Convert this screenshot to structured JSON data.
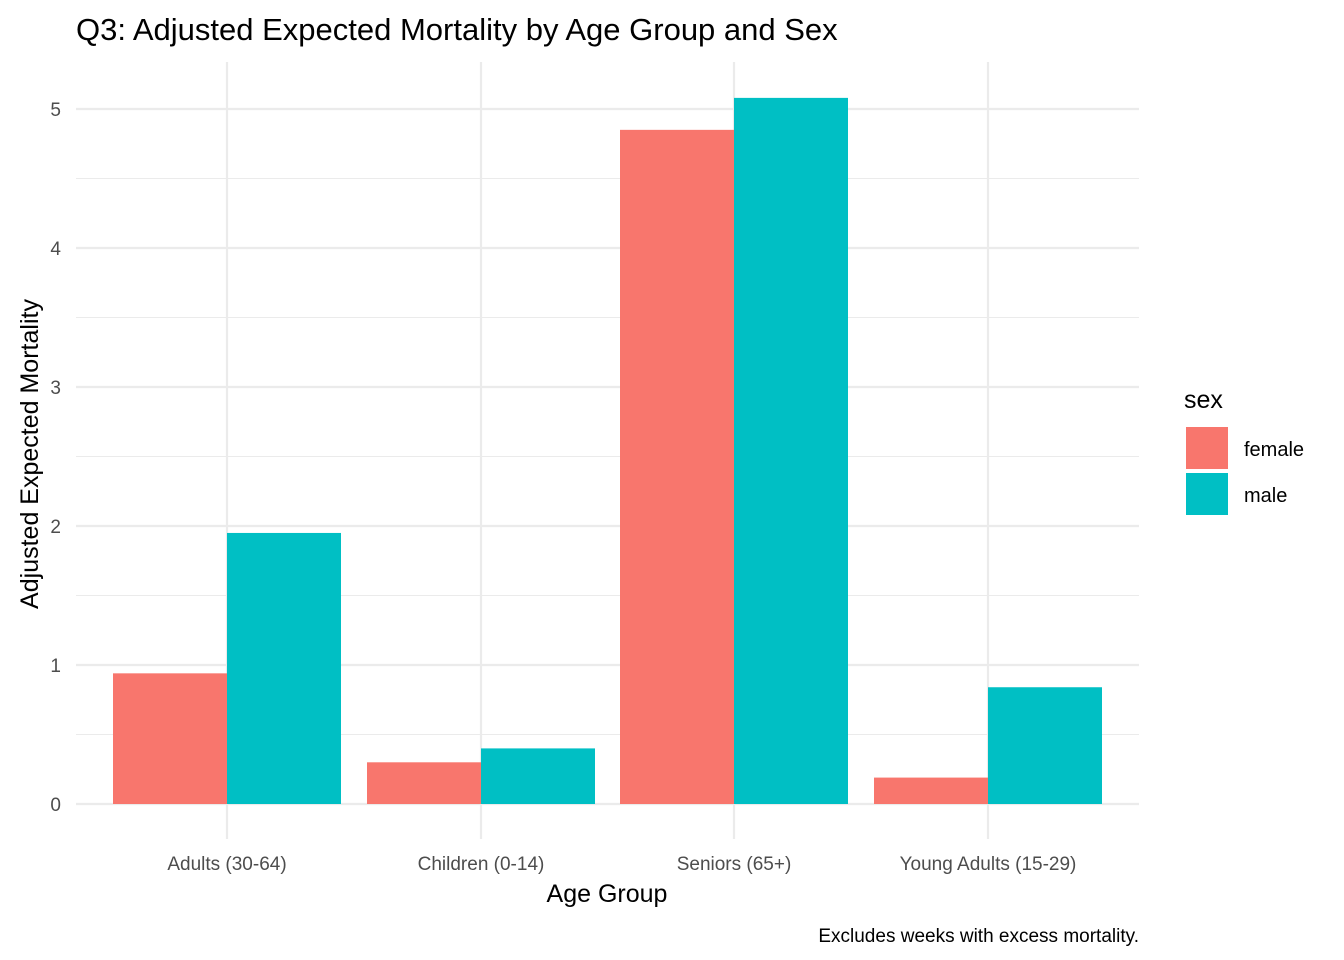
{
  "chart_data": {
    "type": "bar",
    "title": "Q3: Adjusted Expected Mortality by Age Group and Sex",
    "xlabel": "Age Group",
    "ylabel": "Adjusted Expected Mortality",
    "caption": "Excludes weeks with excess mortality.",
    "categories": [
      "Adults (30-64)",
      "Children (0-14)",
      "Seniors (65+)",
      "Young Adults (15-29)"
    ],
    "series": [
      {
        "name": "female",
        "color": "#F8766D",
        "values": [
          0.94,
          0.3,
          4.85,
          0.19
        ]
      },
      {
        "name": "male",
        "color": "#00BFC4",
        "values": [
          1.95,
          0.4,
          5.08,
          0.84
        ]
      }
    ],
    "ylim": [
      0,
      5.3
    ],
    "yticks": [
      0,
      1,
      2,
      3,
      4,
      5
    ],
    "ytick_labels": [
      "0",
      "1",
      "2",
      "3",
      "4",
      "5"
    ],
    "legend": {
      "title": "sex",
      "position": "right"
    },
    "grid": true
  }
}
